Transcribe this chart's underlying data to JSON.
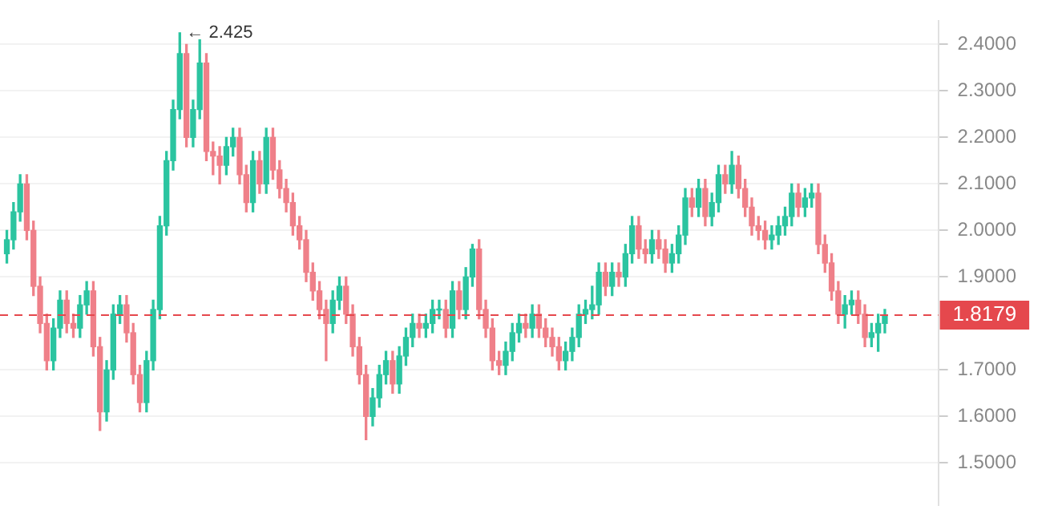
{
  "chart_data": {
    "type": "candlestick",
    "categories": [
      null,
      null,
      null,
      null,
      null,
      null,
      null,
      null,
      null,
      null,
      null,
      null,
      null,
      null,
      null,
      null,
      null,
      null,
      null,
      null,
      null,
      null,
      null,
      null,
      null,
      null,
      null,
      null,
      null,
      null,
      null,
      null,
      null,
      null,
      null,
      null,
      null,
      null,
      null,
      null,
      null,
      null,
      null,
      null,
      null,
      null,
      null,
      null,
      null,
      null,
      null,
      null,
      null,
      null,
      null,
      null,
      null,
      null,
      null,
      null,
      null,
      null,
      null,
      null,
      null,
      null,
      null,
      null,
      null,
      null,
      null,
      null,
      null,
      null,
      null,
      null,
      null,
      null,
      null,
      null,
      null,
      null,
      null,
      null,
      null,
      null,
      null,
      null,
      null,
      null,
      null,
      null,
      null,
      null,
      null,
      null,
      null,
      null,
      null,
      null,
      null,
      null,
      null,
      null,
      null,
      null,
      null,
      null,
      null,
      null,
      null,
      null,
      null,
      null,
      null,
      null,
      null,
      null,
      null,
      null,
      null,
      null,
      null,
      null,
      null,
      null,
      null,
      null,
      null,
      null,
      null,
      null,
      null
    ],
    "ohlc": [
      [
        1.95,
        2.0,
        1.93,
        1.98
      ],
      [
        1.98,
        2.06,
        1.96,
        2.04
      ],
      [
        2.04,
        2.12,
        2.02,
        2.1
      ],
      [
        2.1,
        2.12,
        1.98,
        2.0
      ],
      [
        2.0,
        2.02,
        1.86,
        1.88
      ],
      [
        1.88,
        1.9,
        1.78,
        1.8
      ],
      [
        1.8,
        1.82,
        1.7,
        1.72
      ],
      [
        1.72,
        1.81,
        1.7,
        1.79
      ],
      [
        1.79,
        1.87,
        1.77,
        1.85
      ],
      [
        1.85,
        1.87,
        1.78,
        1.8
      ],
      [
        1.8,
        1.82,
        1.77,
        1.79
      ],
      [
        1.79,
        1.86,
        1.77,
        1.84
      ],
      [
        1.84,
        1.89,
        1.82,
        1.87
      ],
      [
        1.87,
        1.89,
        1.73,
        1.75
      ],
      [
        1.75,
        1.77,
        1.57,
        1.61
      ],
      [
        1.61,
        1.72,
        1.59,
        1.7
      ],
      [
        1.7,
        1.84,
        1.68,
        1.82
      ],
      [
        1.82,
        1.86,
        1.8,
        1.84
      ],
      [
        1.84,
        1.86,
        1.76,
        1.78
      ],
      [
        1.78,
        1.8,
        1.67,
        1.69
      ],
      [
        1.69,
        1.71,
        1.61,
        1.63
      ],
      [
        1.63,
        1.74,
        1.61,
        1.72
      ],
      [
        1.72,
        1.85,
        1.7,
        1.83
      ],
      [
        1.83,
        2.03,
        1.81,
        2.01
      ],
      [
        2.01,
        2.17,
        1.99,
        2.15
      ],
      [
        2.15,
        2.28,
        2.13,
        2.26
      ],
      [
        2.26,
        2.425,
        2.24,
        2.38
      ],
      [
        2.38,
        2.4,
        2.18,
        2.2
      ],
      [
        2.2,
        2.28,
        2.18,
        2.26
      ],
      [
        2.26,
        2.41,
        2.24,
        2.36
      ],
      [
        2.36,
        2.38,
        2.15,
        2.17
      ],
      [
        2.17,
        2.19,
        2.12,
        2.16
      ],
      [
        2.16,
        2.18,
        2.1,
        2.14
      ],
      [
        2.14,
        2.2,
        2.12,
        2.18
      ],
      [
        2.18,
        2.22,
        2.16,
        2.2
      ],
      [
        2.2,
        2.22,
        2.1,
        2.12
      ],
      [
        2.12,
        2.14,
        2.04,
        2.06
      ],
      [
        2.06,
        2.17,
        2.04,
        2.15
      ],
      [
        2.15,
        2.17,
        2.08,
        2.1
      ],
      [
        2.1,
        2.22,
        2.08,
        2.2
      ],
      [
        2.2,
        2.22,
        2.11,
        2.13
      ],
      [
        2.13,
        2.15,
        2.07,
        2.09
      ],
      [
        2.09,
        2.11,
        2.04,
        2.06
      ],
      [
        2.06,
        2.08,
        1.99,
        2.01
      ],
      [
        2.01,
        2.03,
        1.96,
        1.98
      ],
      [
        1.98,
        2.0,
        1.89,
        1.91
      ],
      [
        1.91,
        1.93,
        1.85,
        1.87
      ],
      [
        1.87,
        1.89,
        1.81,
        1.83
      ],
      [
        1.83,
        1.85,
        1.72,
        1.8
      ],
      [
        1.8,
        1.87,
        1.78,
        1.85
      ],
      [
        1.85,
        1.9,
        1.83,
        1.88
      ],
      [
        1.88,
        1.9,
        1.8,
        1.82
      ],
      [
        1.82,
        1.84,
        1.73,
        1.75
      ],
      [
        1.75,
        1.77,
        1.67,
        1.69
      ],
      [
        1.69,
        1.71,
        1.55,
        1.6
      ],
      [
        1.6,
        1.66,
        1.58,
        1.64
      ],
      [
        1.64,
        1.71,
        1.62,
        1.69
      ],
      [
        1.69,
        1.74,
        1.67,
        1.72
      ],
      [
        1.72,
        1.74,
        1.65,
        1.67
      ],
      [
        1.67,
        1.75,
        1.65,
        1.73
      ],
      [
        1.73,
        1.79,
        1.71,
        1.77
      ],
      [
        1.77,
        1.82,
        1.75,
        1.8
      ],
      [
        1.8,
        1.82,
        1.77,
        1.79
      ],
      [
        1.79,
        1.82,
        1.77,
        1.8
      ],
      [
        1.8,
        1.85,
        1.78,
        1.83
      ],
      [
        1.83,
        1.85,
        1.81,
        1.83
      ],
      [
        1.83,
        1.85,
        1.77,
        1.79
      ],
      [
        1.79,
        1.89,
        1.77,
        1.87
      ],
      [
        1.87,
        1.89,
        1.81,
        1.83
      ],
      [
        1.83,
        1.92,
        1.81,
        1.9
      ],
      [
        1.9,
        1.97,
        1.88,
        1.96
      ],
      [
        1.96,
        1.98,
        1.81,
        1.83
      ],
      [
        1.83,
        1.85,
        1.77,
        1.79
      ],
      [
        1.79,
        1.81,
        1.7,
        1.72
      ],
      [
        1.72,
        1.74,
        1.69,
        1.71
      ],
      [
        1.71,
        1.76,
        1.69,
        1.74
      ],
      [
        1.74,
        1.8,
        1.72,
        1.78
      ],
      [
        1.78,
        1.82,
        1.76,
        1.8
      ],
      [
        1.8,
        1.82,
        1.77,
        1.79
      ],
      [
        1.79,
        1.84,
        1.77,
        1.82
      ],
      [
        1.82,
        1.84,
        1.77,
        1.79
      ],
      [
        1.79,
        1.81,
        1.75,
        1.77
      ],
      [
        1.77,
        1.79,
        1.73,
        1.75
      ],
      [
        1.75,
        1.77,
        1.7,
        1.72
      ],
      [
        1.72,
        1.76,
        1.7,
        1.74
      ],
      [
        1.74,
        1.79,
        1.72,
        1.77
      ],
      [
        1.77,
        1.84,
        1.75,
        1.82
      ],
      [
        1.82,
        1.85,
        1.8,
        1.83
      ],
      [
        1.83,
        1.88,
        1.81,
        1.84
      ],
      [
        1.84,
        1.93,
        1.82,
        1.91
      ],
      [
        1.91,
        1.93,
        1.86,
        1.88
      ],
      [
        1.88,
        1.93,
        1.86,
        1.91
      ],
      [
        1.91,
        1.93,
        1.88,
        1.9
      ],
      [
        1.9,
        1.97,
        1.88,
        1.95
      ],
      [
        1.95,
        2.03,
        1.93,
        2.01
      ],
      [
        2.01,
        2.03,
        1.94,
        1.96
      ],
      [
        1.96,
        1.98,
        1.93,
        1.95
      ],
      [
        1.95,
        2.0,
        1.93,
        1.98
      ],
      [
        1.98,
        2.0,
        1.94,
        1.96
      ],
      [
        1.96,
        1.98,
        1.91,
        1.93
      ],
      [
        1.93,
        1.97,
        1.91,
        1.95
      ],
      [
        1.95,
        2.01,
        1.93,
        1.99
      ],
      [
        1.99,
        2.09,
        1.97,
        2.07
      ],
      [
        2.07,
        2.09,
        2.03,
        2.05
      ],
      [
        2.05,
        2.11,
        2.03,
        2.09
      ],
      [
        2.09,
        2.11,
        2.01,
        2.03
      ],
      [
        2.03,
        2.08,
        2.01,
        2.06
      ],
      [
        2.06,
        2.14,
        2.04,
        2.12
      ],
      [
        2.12,
        2.14,
        2.08,
        2.1
      ],
      [
        2.1,
        2.17,
        2.08,
        2.14
      ],
      [
        2.14,
        2.16,
        2.07,
        2.09
      ],
      [
        2.09,
        2.11,
        2.03,
        2.05
      ],
      [
        2.05,
        2.07,
        1.99,
        2.01
      ],
      [
        2.01,
        2.03,
        1.98,
        2.0
      ],
      [
        2.0,
        2.02,
        1.96,
        1.98
      ],
      [
        1.98,
        2.01,
        1.96,
        1.99
      ],
      [
        1.99,
        2.03,
        1.97,
        2.01
      ],
      [
        2.01,
        2.05,
        1.99,
        2.03
      ],
      [
        2.03,
        2.1,
        2.01,
        2.08
      ],
      [
        2.08,
        2.1,
        2.03,
        2.05
      ],
      [
        2.05,
        2.09,
        2.03,
        2.07
      ],
      [
        2.07,
        2.1,
        2.05,
        2.08
      ],
      [
        2.08,
        2.1,
        1.95,
        1.97
      ],
      [
        1.97,
        1.99,
        1.91,
        1.93
      ],
      [
        1.93,
        1.95,
        1.85,
        1.87
      ],
      [
        1.87,
        1.89,
        1.8,
        1.82
      ],
      [
        1.82,
        1.86,
        1.79,
        1.84
      ],
      [
        1.84,
        1.87,
        1.82,
        1.85
      ],
      [
        1.85,
        1.87,
        1.8,
        1.82
      ],
      [
        1.82,
        1.84,
        1.75,
        1.77
      ],
      [
        1.77,
        1.8,
        1.75,
        1.78
      ],
      [
        1.78,
        1.82,
        1.74,
        1.8
      ],
      [
        1.8,
        1.83,
        1.78,
        1.8179
      ]
    ],
    "colors": [
      "#2bc4a0",
      "#2bc4a0",
      "#2bc4a0",
      "#ef8089",
      "#ef8089",
      "#ef8089",
      "#ef8089",
      "#2bc4a0",
      "#2bc4a0",
      "#ef8089",
      "#ef8089",
      "#2bc4a0",
      "#2bc4a0",
      "#ef8089",
      "#ef8089",
      "#2bc4a0",
      "#2bc4a0",
      "#2bc4a0",
      "#ef8089",
      "#ef8089",
      "#ef8089",
      "#2bc4a0",
      "#2bc4a0",
      "#2bc4a0",
      "#2bc4a0",
      "#2bc4a0",
      "#2bc4a0",
      "#ef8089",
      "#2bc4a0",
      "#2bc4a0",
      "#ef8089",
      "#ef8089",
      "#ef8089",
      "#2bc4a0",
      "#2bc4a0",
      "#ef8089",
      "#ef8089",
      "#2bc4a0",
      "#ef8089",
      "#2bc4a0",
      "#ef8089",
      "#ef8089",
      "#ef8089",
      "#ef8089",
      "#ef8089",
      "#ef8089",
      "#ef8089",
      "#ef8089",
      "#ef8089",
      "#2bc4a0",
      "#2bc4a0",
      "#ef8089",
      "#ef8089",
      "#ef8089",
      "#ef8089",
      "#2bc4a0",
      "#2bc4a0",
      "#2bc4a0",
      "#ef8089",
      "#2bc4a0",
      "#2bc4a0",
      "#2bc4a0",
      "#ef8089",
      "#2bc4a0",
      "#2bc4a0",
      "#2bc4a0",
      "#ef8089",
      "#2bc4a0",
      "#ef8089",
      "#2bc4a0",
      "#2bc4a0",
      "#ef8089",
      "#ef8089",
      "#ef8089",
      "#ef8089",
      "#2bc4a0",
      "#2bc4a0",
      "#2bc4a0",
      "#ef8089",
      "#2bc4a0",
      "#ef8089",
      "#ef8089",
      "#ef8089",
      "#ef8089",
      "#2bc4a0",
      "#2bc4a0",
      "#2bc4a0",
      "#2bc4a0",
      "#2bc4a0",
      "#2bc4a0",
      "#ef8089",
      "#2bc4a0",
      "#ef8089",
      "#2bc4a0",
      "#2bc4a0",
      "#ef8089",
      "#ef8089",
      "#2bc4a0",
      "#ef8089",
      "#ef8089",
      "#2bc4a0",
      "#2bc4a0",
      "#2bc4a0",
      "#ef8089",
      "#2bc4a0",
      "#ef8089",
      "#2bc4a0",
      "#2bc4a0",
      "#ef8089",
      "#2bc4a0",
      "#ef8089",
      "#ef8089",
      "#ef8089",
      "#ef8089",
      "#ef8089",
      "#2bc4a0",
      "#2bc4a0",
      "#2bc4a0",
      "#2bc4a0",
      "#ef8089",
      "#2bc4a0",
      "#2bc4a0",
      "#ef8089",
      "#ef8089",
      "#ef8089",
      "#ef8089",
      "#2bc4a0",
      "#2bc4a0",
      "#ef8089",
      "#ef8089",
      "#2bc4a0",
      "#2bc4a0",
      "#2bc4a0"
    ],
    "ylim": [
      1.41,
      2.45
    ],
    "yticks": [
      {
        "value": 1.5,
        "label": "1.5000"
      },
      {
        "value": 1.6,
        "label": "1.6000"
      },
      {
        "value": 1.7,
        "label": "1.7000"
      },
      {
        "value": 1.9,
        "label": "1.9000"
      },
      {
        "value": 2.0,
        "label": "2.0000"
      },
      {
        "value": 2.1,
        "label": "2.1000"
      },
      {
        "value": 2.2,
        "label": "2.2000"
      },
      {
        "value": 2.3,
        "label": "2.3000"
      },
      {
        "value": 2.4,
        "label": "2.4000"
      }
    ],
    "ref_lines": [
      {
        "axis": "y",
        "value": 1.8179,
        "label": "1.8179",
        "color": "#e5484d",
        "line_style": "dashed"
      }
    ],
    "annotations": [
      "← 2.425"
    ],
    "grid": "y",
    "tick_labels": "y"
  }
}
